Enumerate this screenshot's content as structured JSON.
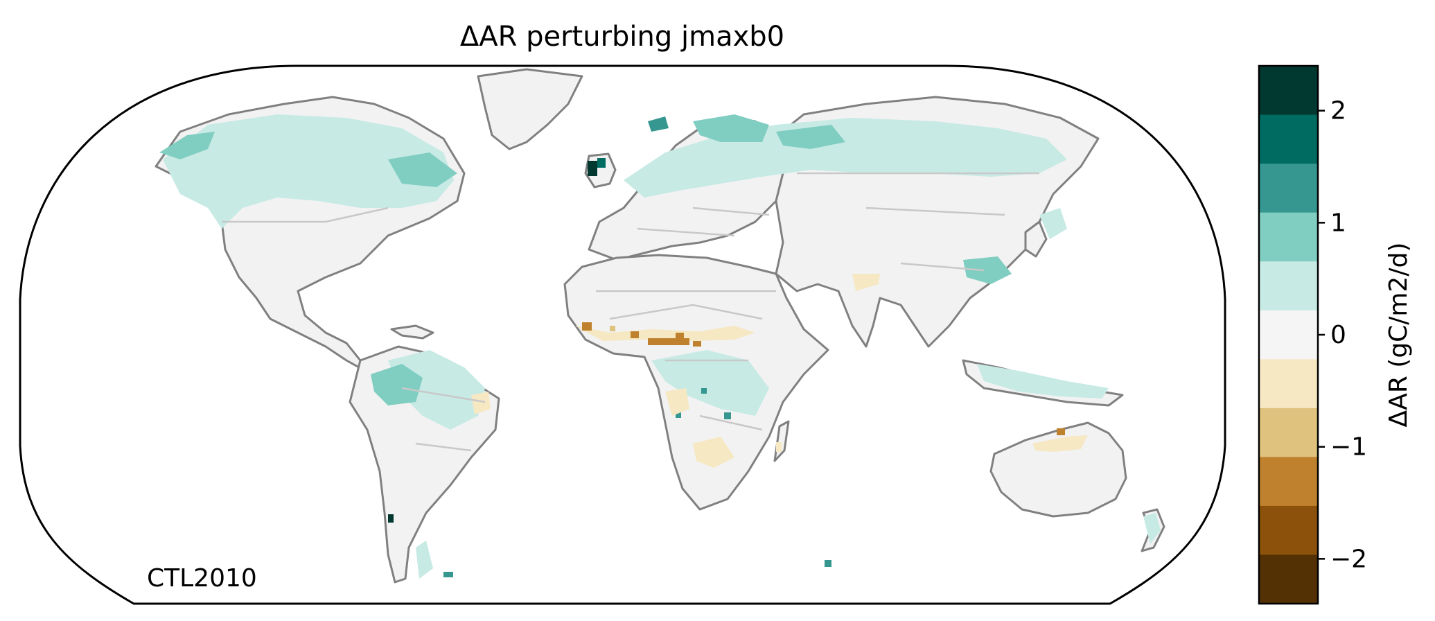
{
  "figure": {
    "title": "ΔAR perturbing jmaxb0",
    "corner_label": "CTL2010"
  },
  "colorbar": {
    "label": "ΔAR (gC/m2/d)",
    "ticks": [
      {
        "value": 2,
        "label": "2"
      },
      {
        "value": 1,
        "label": "1"
      },
      {
        "value": 0,
        "label": "0"
      },
      {
        "value": -1,
        "label": "−1"
      },
      {
        "value": -2,
        "label": "−2"
      }
    ],
    "range": [
      -2.4,
      2.4
    ],
    "colors_top_to_bottom": [
      "#01382f",
      "#006b60",
      "#35978f",
      "#80cdc1",
      "#c7eae5",
      "#f5f5f5",
      "#f6e8c3",
      "#dfc27d",
      "#bf812d",
      "#8c510a",
      "#543005"
    ]
  },
  "map": {
    "projection": "Robinson",
    "land_fill": "#f2f2f2",
    "coast_color": "#808080",
    "border_color": "#c8c8c8"
  }
}
